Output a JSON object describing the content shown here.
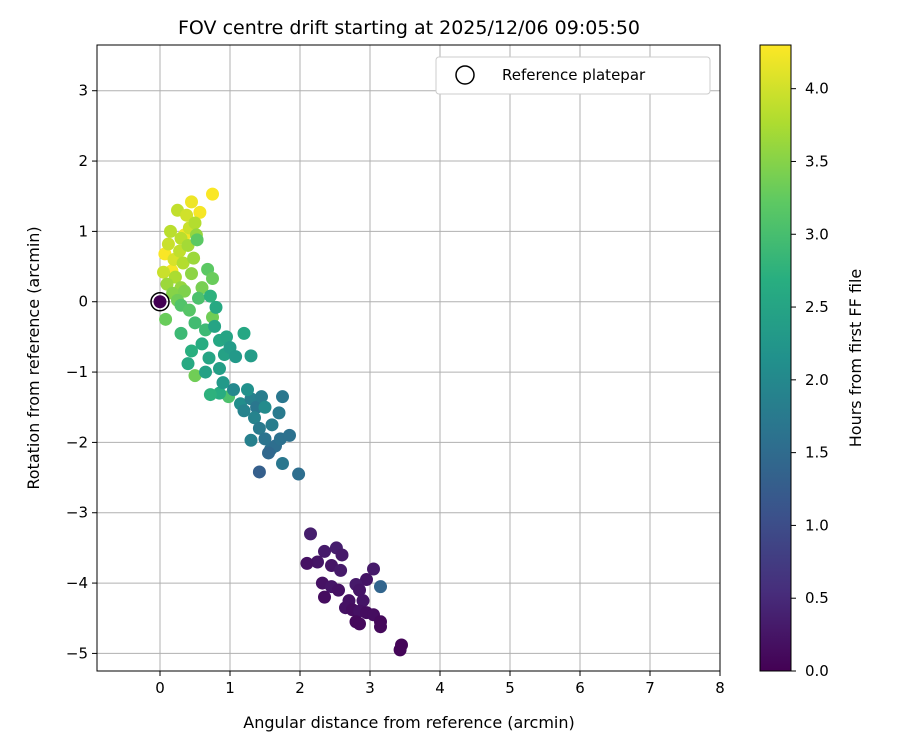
{
  "chart_data": {
    "type": "scatter",
    "title": "FOV centre drift starting at 2025/12/06 09:05:50",
    "xlabel": "Angular distance from reference (arcmin)",
    "ylabel": "Rotation from reference (arcmin)",
    "xlim": [
      -0.9,
      8
    ],
    "ylim": [
      -5.25,
      3.65
    ],
    "xticks": [
      0,
      1,
      2,
      3,
      4,
      5,
      6,
      7,
      8
    ],
    "yticks": [
      -5,
      -4,
      -3,
      -2,
      -1,
      0,
      1,
      2,
      3
    ],
    "grid": true,
    "legend": {
      "placement": "upper-right",
      "entries": [
        "Reference platepar"
      ]
    },
    "reference_point": {
      "x": 0,
      "y": 0
    },
    "colorbar": {
      "label": "Hours from first FF file",
      "range": [
        0,
        4.3
      ],
      "ticks": [
        "0.0",
        "0.5",
        "1.0",
        "1.5",
        "2.0",
        "2.5",
        "3.0",
        "3.5",
        "4.0"
      ],
      "colormap": "viridis"
    },
    "series": [
      {
        "points": [
          {
            "x": 0.75,
            "y": 1.53,
            "t": 4.28
          },
          {
            "x": 0.57,
            "y": 1.27,
            "t": 4.25
          },
          {
            "x": 0.45,
            "y": 1.42,
            "t": 4.2
          },
          {
            "x": 0.07,
            "y": 0.68,
            "t": 4.27
          },
          {
            "x": 0.17,
            "y": 0.44,
            "t": 4.25
          },
          {
            "x": 0.35,
            "y": 0.95,
            "t": 4.22
          },
          {
            "x": 0.25,
            "y": 1.3,
            "t": 3.9
          },
          {
            "x": 0.38,
            "y": 1.23,
            "t": 4.0
          },
          {
            "x": 0.12,
            "y": 0.82,
            "t": 3.95
          },
          {
            "x": 0.3,
            "y": 0.9,
            "t": 3.85
          },
          {
            "x": 0.42,
            "y": 1.05,
            "t": 3.95
          },
          {
            "x": 0.5,
            "y": 1.12,
            "t": 3.8
          },
          {
            "x": 0.2,
            "y": 0.6,
            "t": 4.05
          },
          {
            "x": 0.28,
            "y": 0.72,
            "t": 3.9
          },
          {
            "x": 0.15,
            "y": 1.0,
            "t": 3.85
          },
          {
            "x": 0.05,
            "y": 0.42,
            "t": 3.95
          },
          {
            "x": 0.33,
            "y": 0.55,
            "t": 3.8
          },
          {
            "x": 0.4,
            "y": 0.8,
            "t": 3.7
          },
          {
            "x": 0.22,
            "y": 0.35,
            "t": 3.75
          },
          {
            "x": 0.1,
            "y": 0.25,
            "t": 3.65
          },
          {
            "x": 0.3,
            "y": 0.2,
            "t": 3.6
          },
          {
            "x": 0.45,
            "y": 0.4,
            "t": 3.55
          },
          {
            "x": 0.52,
            "y": 0.95,
            "t": 3.6
          },
          {
            "x": 0.18,
            "y": 0.12,
            "t": 3.5
          },
          {
            "x": 0.6,
            "y": 0.2,
            "t": 3.4
          },
          {
            "x": 0.35,
            "y": 0.15,
            "t": 3.45
          },
          {
            "x": 0.48,
            "y": 0.62,
            "t": 3.65
          },
          {
            "x": 0.25,
            "y": 0.02,
            "t": 3.35
          },
          {
            "x": 0.53,
            "y": 0.88,
            "t": 3.2
          },
          {
            "x": 0.68,
            "y": 0.46,
            "t": 3.2
          },
          {
            "x": 0.75,
            "y": 0.33,
            "t": 3.3
          },
          {
            "x": 0.08,
            "y": -0.25,
            "t": 3.3
          },
          {
            "x": 0.3,
            "y": -0.05,
            "t": 3.1
          },
          {
            "x": 0.42,
            "y": -0.12,
            "t": 3.15
          },
          {
            "x": 0.55,
            "y": 0.05,
            "t": 3.05
          },
          {
            "x": 0.5,
            "y": -0.3,
            "t": 2.95
          },
          {
            "x": 0.75,
            "y": -0.22,
            "t": 3.35
          },
          {
            "x": 0.65,
            "y": -0.4,
            "t": 2.9
          },
          {
            "x": 0.72,
            "y": 0.08,
            "t": 2.75
          },
          {
            "x": 0.3,
            "y": -0.45,
            "t": 2.9
          },
          {
            "x": 0.45,
            "y": -0.7,
            "t": 2.7
          },
          {
            "x": 0.6,
            "y": -0.6,
            "t": 2.65
          },
          {
            "x": 0.8,
            "y": -0.08,
            "t": 2.6
          },
          {
            "x": 0.78,
            "y": -0.35,
            "t": 2.5
          },
          {
            "x": 0.85,
            "y": -0.55,
            "t": 2.55
          },
          {
            "x": 0.4,
            "y": -0.88,
            "t": 2.6
          },
          {
            "x": 0.5,
            "y": -1.05,
            "t": 3.35
          },
          {
            "x": 0.7,
            "y": -0.8,
            "t": 2.5
          },
          {
            "x": 0.65,
            "y": -1.0,
            "t": 2.45
          },
          {
            "x": 0.92,
            "y": -0.75,
            "t": 2.45
          },
          {
            "x": 0.85,
            "y": -0.95,
            "t": 2.4
          },
          {
            "x": 0.95,
            "y": -0.5,
            "t": 2.5
          },
          {
            "x": 1.2,
            "y": -0.45,
            "t": 2.55
          },
          {
            "x": 1.0,
            "y": -0.65,
            "t": 2.35
          },
          {
            "x": 1.08,
            "y": -0.78,
            "t": 2.3
          },
          {
            "x": 1.3,
            "y": -0.77,
            "t": 2.35
          },
          {
            "x": 0.98,
            "y": -1.35,
            "t": 3.05
          },
          {
            "x": 0.85,
            "y": -1.3,
            "t": 2.65
          },
          {
            "x": 0.72,
            "y": -1.32,
            "t": 2.75
          },
          {
            "x": 0.9,
            "y": -1.15,
            "t": 2.3
          },
          {
            "x": 1.05,
            "y": -1.25,
            "t": 2.0
          },
          {
            "x": 1.15,
            "y": -1.45,
            "t": 2.1
          },
          {
            "x": 1.2,
            "y": -1.55,
            "t": 1.9
          },
          {
            "x": 1.3,
            "y": -1.38,
            "t": 1.85
          },
          {
            "x": 1.38,
            "y": -1.5,
            "t": 1.7
          },
          {
            "x": 1.45,
            "y": -1.35,
            "t": 1.8
          },
          {
            "x": 1.5,
            "y": -1.5,
            "t": 2.05
          },
          {
            "x": 1.35,
            "y": -1.65,
            "t": 1.9
          },
          {
            "x": 1.42,
            "y": -1.8,
            "t": 1.75
          },
          {
            "x": 1.5,
            "y": -1.95,
            "t": 1.65
          },
          {
            "x": 1.3,
            "y": -1.97,
            "t": 1.85
          },
          {
            "x": 1.58,
            "y": -2.1,
            "t": 1.6
          },
          {
            "x": 1.65,
            "y": -2.05,
            "t": 1.55
          },
          {
            "x": 1.72,
            "y": -1.95,
            "t": 1.6
          },
          {
            "x": 1.75,
            "y": -1.35,
            "t": 1.7
          },
          {
            "x": 1.7,
            "y": -1.58,
            "t": 1.75
          },
          {
            "x": 1.85,
            "y": -1.9,
            "t": 1.6
          },
          {
            "x": 1.75,
            "y": -2.3,
            "t": 1.7
          },
          {
            "x": 1.42,
            "y": -2.42,
            "t": 1.3
          },
          {
            "x": 1.98,
            "y": -2.45,
            "t": 1.55
          },
          {
            "x": 1.25,
            "y": -1.25,
            "t": 2.15
          },
          {
            "x": 1.55,
            "y": -2.15,
            "t": 1.45
          },
          {
            "x": 1.6,
            "y": -1.75,
            "t": 1.8
          },
          {
            "x": 2.15,
            "y": -3.3,
            "t": 0.35
          },
          {
            "x": 2.35,
            "y": -3.55,
            "t": 0.3
          },
          {
            "x": 2.52,
            "y": -3.5,
            "t": 0.35
          },
          {
            "x": 2.6,
            "y": -3.6,
            "t": 0.3
          },
          {
            "x": 2.25,
            "y": -3.7,
            "t": 0.25
          },
          {
            "x": 2.1,
            "y": -3.72,
            "t": 0.2
          },
          {
            "x": 2.45,
            "y": -3.75,
            "t": 0.25
          },
          {
            "x": 2.58,
            "y": -3.82,
            "t": 0.3
          },
          {
            "x": 3.05,
            "y": -3.8,
            "t": 0.3
          },
          {
            "x": 2.95,
            "y": -3.95,
            "t": 0.25
          },
          {
            "x": 2.32,
            "y": -4.0,
            "t": 0.2
          },
          {
            "x": 2.45,
            "y": -4.05,
            "t": 0.25
          },
          {
            "x": 2.55,
            "y": -4.1,
            "t": 0.2
          },
          {
            "x": 2.35,
            "y": -4.2,
            "t": 0.15
          },
          {
            "x": 2.8,
            "y": -4.02,
            "t": 0.3
          },
          {
            "x": 2.85,
            "y": -4.1,
            "t": 0.25
          },
          {
            "x": 3.15,
            "y": -4.05,
            "t": 1.4
          },
          {
            "x": 2.7,
            "y": -4.25,
            "t": 0.2
          },
          {
            "x": 2.9,
            "y": -4.25,
            "t": 0.25
          },
          {
            "x": 2.65,
            "y": -4.35,
            "t": 0.2
          },
          {
            "x": 2.75,
            "y": -4.38,
            "t": 0.15
          },
          {
            "x": 2.85,
            "y": -4.4,
            "t": 0.2
          },
          {
            "x": 2.95,
            "y": -4.42,
            "t": 0.15
          },
          {
            "x": 3.05,
            "y": -4.45,
            "t": 0.15
          },
          {
            "x": 3.15,
            "y": -4.55,
            "t": 0.1
          },
          {
            "x": 2.8,
            "y": -4.55,
            "t": 0.1
          },
          {
            "x": 2.85,
            "y": -4.58,
            "t": 0.1
          },
          {
            "x": 3.15,
            "y": -4.62,
            "t": 0.1
          },
          {
            "x": 3.45,
            "y": -4.88,
            "t": 0.05
          },
          {
            "x": 3.43,
            "y": -4.95,
            "t": 0.05
          },
          {
            "x": 0.0,
            "y": 0.0,
            "t": 0.0
          }
        ]
      }
    ]
  }
}
